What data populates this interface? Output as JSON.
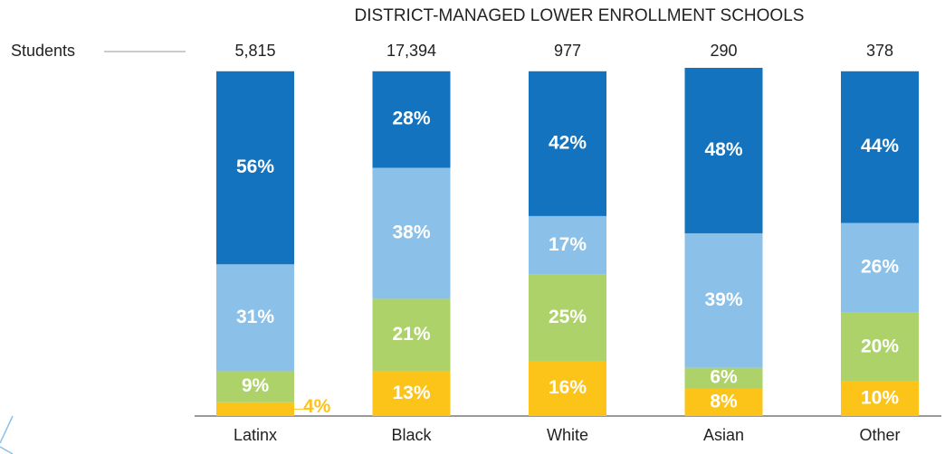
{
  "chart_data": {
    "type": "stacked_bar",
    "title": "DISTRICT-MANAGED LOWER ENROLLMENT SCHOOLS",
    "categories": [
      "Latinx",
      "Black",
      "White",
      "Asian",
      "Other"
    ],
    "students": {
      "label": "Students",
      "values": [
        5815,
        17394,
        977,
        290,
        378
      ],
      "value_labels": [
        "5,815",
        "17,394",
        "977",
        "290",
        "378"
      ]
    },
    "series": [
      {
        "color": "#fcc419",
        "values": [
          4,
          13,
          16,
          8,
          10
        ],
        "value_labels": [
          "4%",
          "13%",
          "16%",
          "8%",
          "10%"
        ]
      },
      {
        "color": "#add26a",
        "values": [
          9,
          21,
          25,
          6,
          20
        ],
        "value_labels": [
          "9%",
          "21%",
          "25%",
          "6%",
          "20%"
        ]
      },
      {
        "color": "#8bc1e8",
        "values": [
          31,
          38,
          17,
          39,
          26
        ],
        "value_labels": [
          "31%",
          "38%",
          "17%",
          "39%",
          "26%"
        ]
      },
      {
        "color": "#1473be",
        "values": [
          56,
          28,
          42,
          48,
          44
        ],
        "value_labels": [
          "56%",
          "28%",
          "42%",
          "48%",
          "44%"
        ]
      }
    ]
  }
}
